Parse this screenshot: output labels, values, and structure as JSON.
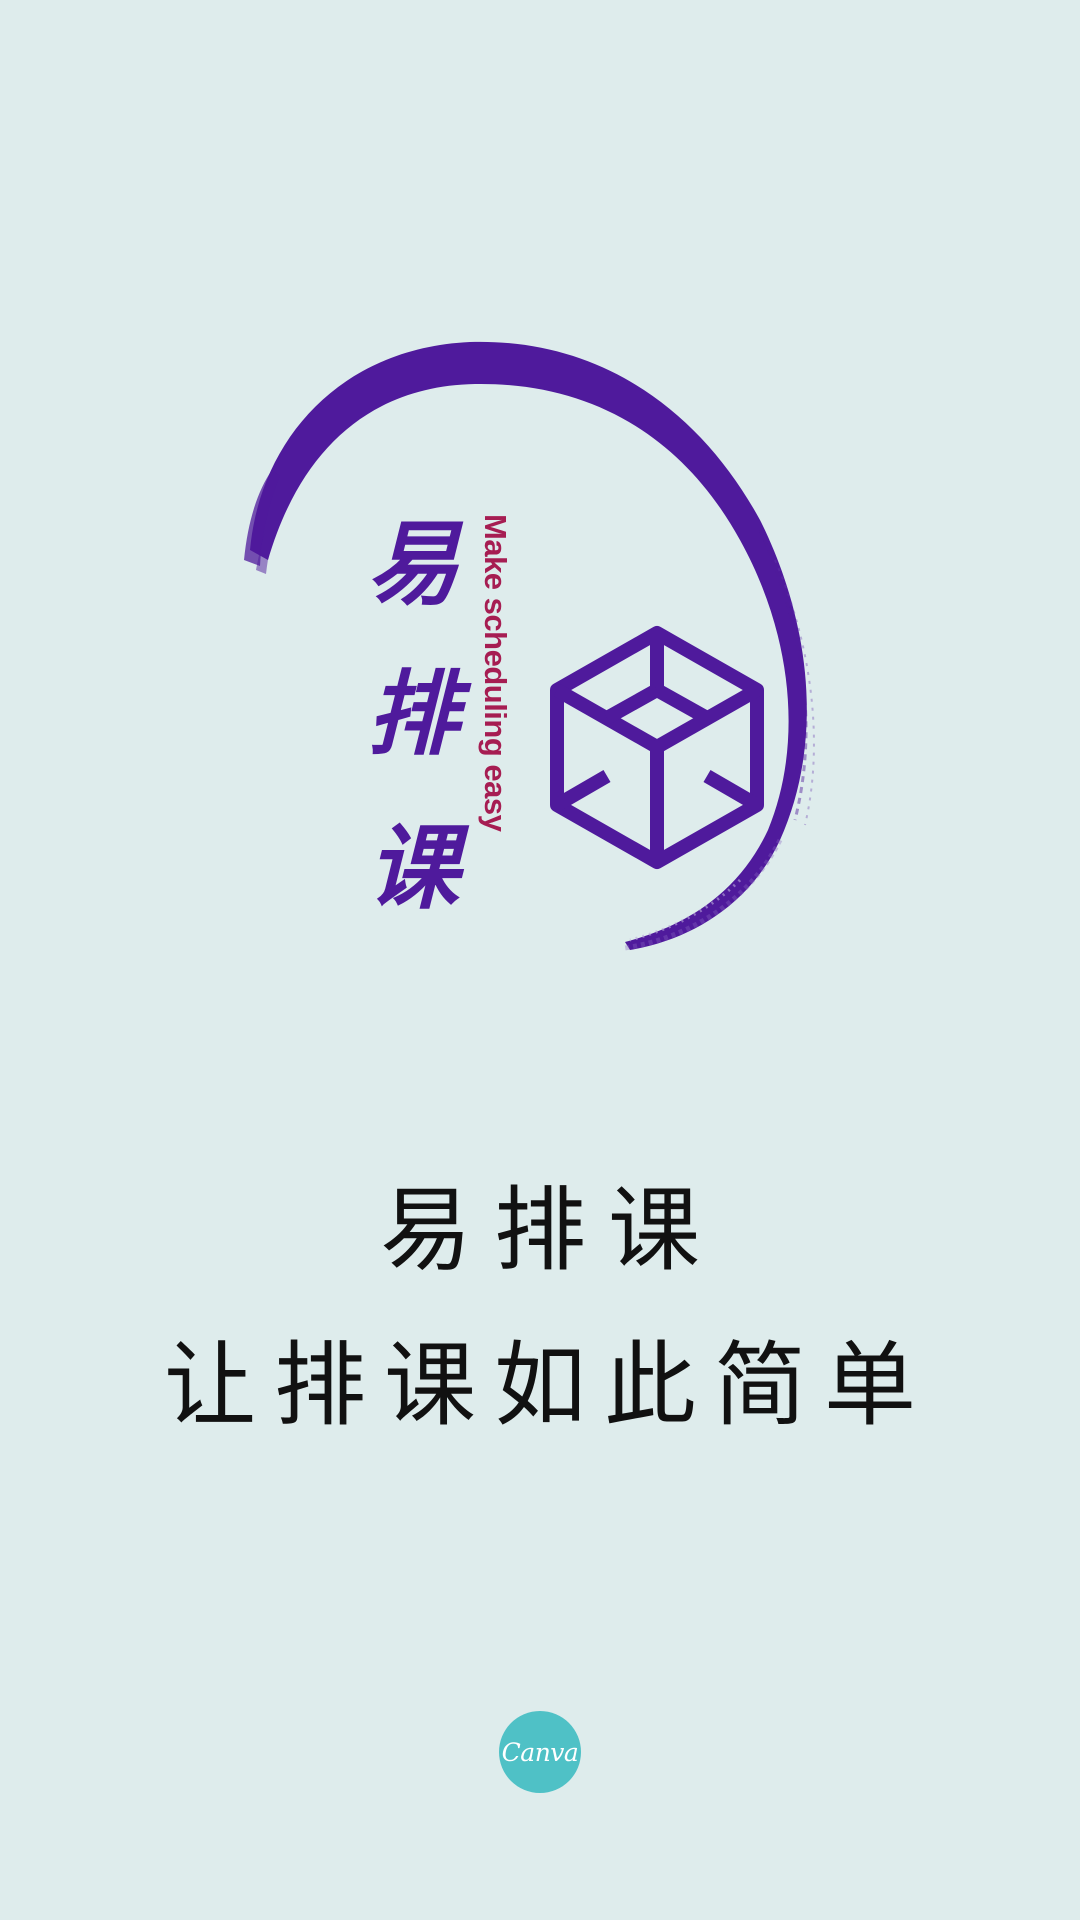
{
  "app": {
    "name_cjk_chars": [
      "易",
      "排",
      "课"
    ],
    "tagline": "Make scheduling easy"
  },
  "headline": {
    "title": "易排课",
    "slogan": "让排课如此简单"
  },
  "badge": {
    "label": "Canva",
    "color": "#4fc1c6"
  },
  "colors": {
    "background": "#deecec",
    "brand_purple": "#4f1a9c",
    "tagline_red": "#a61d52",
    "text": "#111111"
  },
  "icons": {
    "logo_mark": "cube-outline-icon",
    "logo_swoosh": "brush-stroke-icon"
  }
}
